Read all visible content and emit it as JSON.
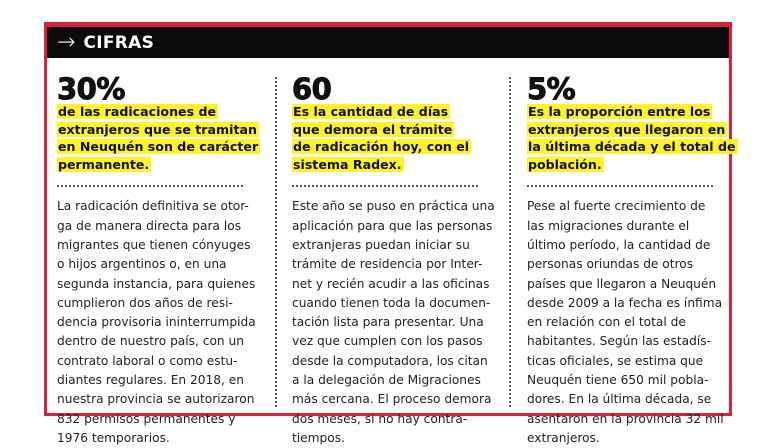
{
  "header": {
    "icon": "arrow-right-icon",
    "title": "CIFRAS"
  },
  "colors": {
    "frame": "#d8213a",
    "header_bg": "#0b0b0b",
    "highlight": "#fff22b"
  },
  "columns": [
    {
      "figure": "30%",
      "subtitle": [
        "de las radicaciones de",
        "extranjeros que se tramitan",
        "en Neuquén son de carácter",
        "permanente."
      ],
      "body": [
        "La radicación definitiva se otor-",
        "ga de manera directa para los",
        "migrantes que tienen cónyuges",
        "o hijos argentinos o, en una",
        "segunda instancia, para quienes",
        "cumplieron dos años de resi-",
        "dencia provisoria ininterrumpida",
        "dentro de nuestro país, con un",
        "contrato laboral o como estu-",
        "diantes regulares. En 2018, en",
        "nuestra provincia se autorizaron",
        "832 permisos permanentes y",
        "1976 temporarios."
      ]
    },
    {
      "figure": "60",
      "subtitle": [
        "Es la cantidad de días",
        "que demora el trámite",
        "de radicación hoy, con el",
        "sistema Radex."
      ],
      "body": [
        "Este año se puso en práctica una",
        "aplicación para que las personas",
        "extranjeras puedan iniciar su",
        "trámite de residencia por Inter-",
        "net y recién acudir a las oficinas",
        "cuando tienen toda la documen-",
        "tación lista para presentar. Una",
        "vez que cumplen con los pasos",
        "desde la computadora, los citan",
        "a la delegación de Migraciones",
        "más cercana. El proceso demora",
        "dos meses, si no hay contra-",
        "tiempos."
      ]
    },
    {
      "figure": "5%",
      "subtitle": [
        "Es la proporción entre los",
        "extranjeros que llegaron en",
        "la última década y el total de",
        "población."
      ],
      "body": [
        "Pese al fuerte crecimiento de",
        "las migraciones durante el",
        "último período, la cantidad de",
        "personas oriundas de otros",
        "países que llegaron a Neuquén",
        "desde 2009 a la fecha es ínfima",
        "en relación con el total de",
        "habitantes. Según las estadís-",
        "ticas oficiales, se estima que",
        "Neuquén tiene 650 mil pobla-",
        "dores. En la última década, se",
        "asentaron en la provincia 32 mil",
        "extranjeros."
      ]
    }
  ]
}
